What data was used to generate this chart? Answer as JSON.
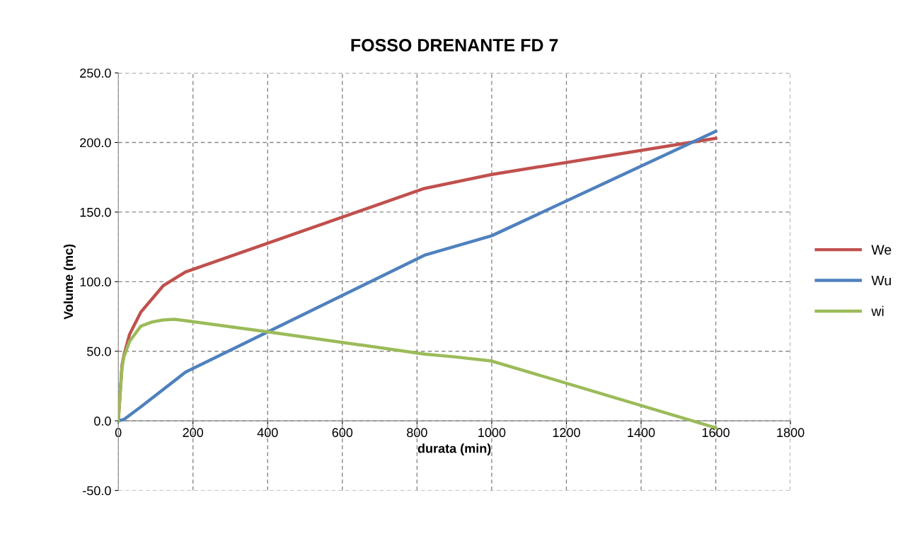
{
  "chart_data": {
    "type": "line",
    "title": "FOSSO DRENANTE FD 7",
    "xlabel": "durata (min)",
    "ylabel": "Volume (mc)",
    "xlim": [
      0,
      1800
    ],
    "ylim": [
      -50,
      250
    ],
    "xticks": [
      0,
      200,
      400,
      600,
      800,
      1000,
      1200,
      1400,
      1600,
      1800
    ],
    "yticks": [
      {
        "value": -50,
        "label": "-50.0"
      },
      {
        "value": 0,
        "label": "0.0"
      },
      {
        "value": 50,
        "label": "50.0"
      },
      {
        "value": 100,
        "label": "100.0"
      },
      {
        "value": 150,
        "label": "150.0"
      },
      {
        "value": 200,
        "label": "200.0"
      },
      {
        "value": 250,
        "label": "250.0"
      }
    ],
    "grid": true,
    "legend": "right",
    "line_style": "solid",
    "marker": "none",
    "series": [
      {
        "name": "We",
        "color": "#c0504d",
        "x": [
          0,
          5,
          10,
          15,
          30,
          60,
          120,
          180,
          820,
          1000,
          1600
        ],
        "values": [
          0,
          20,
          40,
          47,
          62,
          78,
          97,
          107,
          167,
          177,
          203
        ]
      },
      {
        "name": "Wu",
        "color": "#4f81bd",
        "x": [
          0,
          15,
          60,
          180,
          820,
          1000,
          1600
        ],
        "values": [
          0,
          1,
          10,
          35,
          119,
          133,
          208
        ]
      },
      {
        "name": "wi",
        "color": "#9bbb59",
        "x": [
          0,
          5,
          10,
          15,
          30,
          60,
          90,
          120,
          150,
          180,
          400,
          820,
          900,
          1000,
          1600
        ],
        "values": [
          0,
          20,
          38,
          46,
          57,
          68,
          71,
          72.5,
          73,
          72,
          64,
          48,
          46,
          43,
          -5
        ]
      }
    ]
  }
}
